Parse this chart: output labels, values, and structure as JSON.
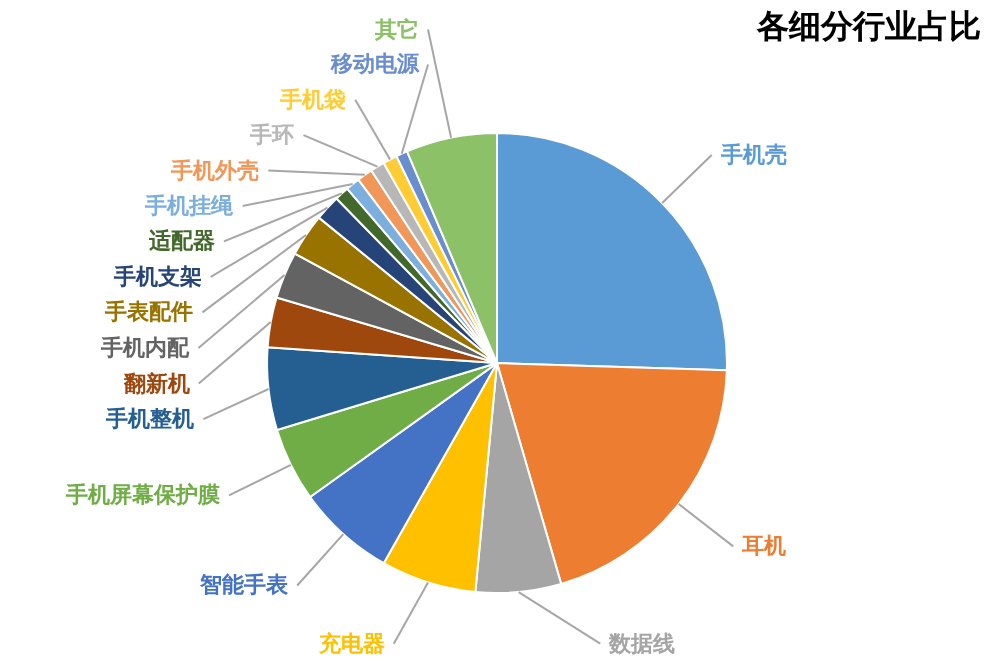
{
  "chart_data": {
    "type": "pie",
    "title": "各细分行业占比",
    "categories": [
      "手机壳",
      "耳机",
      "数据线",
      "充电器",
      "智能手表",
      "手机屏幕保护膜",
      "手机整机",
      "翻新机",
      "手机内配",
      "手表配件",
      "手机支架",
      "适配器",
      "手机挂绳",
      "手机外壳",
      "手环",
      "手机袋",
      "移动电源",
      "其它"
    ],
    "values": [
      25.5,
      20,
      6,
      6.7,
      6.9,
      5.2,
      5.8,
      3.5,
      3.3,
      3,
      1.8,
      1,
      1,
      1.1,
      1,
      1,
      0.8,
      6.4
    ],
    "colors": [
      "#5b9bd5",
      "#ed7d31",
      "#a5a5a5",
      "#ffc000",
      "#4472c4",
      "#70ad47",
      "#255e91",
      "#9e480e",
      "#636363",
      "#997300",
      "#264478",
      "#43682b",
      "#7cafdd",
      "#f1975a",
      "#b7b7b7",
      "#ffcd33",
      "#698ed0",
      "#8cc168"
    ]
  }
}
